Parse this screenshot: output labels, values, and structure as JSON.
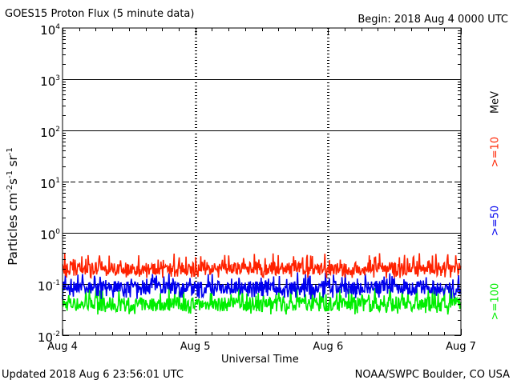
{
  "header": {
    "title": "GOES15 Proton Flux (5 minute data)",
    "begin": "Begin: 2018 Aug 4 0000 UTC"
  },
  "footer": {
    "updated": "Updated 2018 Aug  6 23:56:01 UTC",
    "credit": "NOAA/SWPC Boulder, CO USA"
  },
  "chart_data": {
    "type": "line",
    "title": "GOES15 Proton Flux (5 minute data)",
    "xlabel": "Universal Time",
    "ylabel": "Particles cm-2 s-1 sr-1",
    "yscale": "log",
    "ylim": [
      0.01,
      10000
    ],
    "xlim": [
      0,
      3
    ],
    "x_ticks": [
      {
        "value": 0,
        "label": "Aug 4"
      },
      {
        "value": 1,
        "label": "Aug 5"
      },
      {
        "value": 2,
        "label": "Aug 6"
      },
      {
        "value": 3,
        "label": "Aug 7"
      }
    ],
    "y_ticks": [
      {
        "value": 10000,
        "base": "10",
        "exp": "4"
      },
      {
        "value": 1000,
        "base": "10",
        "exp": "3"
      },
      {
        "value": 100,
        "base": "10",
        "exp": "2"
      },
      {
        "value": 10,
        "base": "10",
        "exp": "1"
      },
      {
        "value": 1,
        "base": "10",
        "exp": "0"
      },
      {
        "value": 0.1,
        "base": "10",
        "exp": "-1"
      },
      {
        "value": 0.01,
        "base": "10",
        "exp": "-2"
      }
    ],
    "grid": "horizontal at decades; dotted vertical at day boundaries",
    "threshold_lines": [
      {
        "value": 10,
        "style": "dashed"
      },
      {
        "value": 1000,
        "style": "solid"
      },
      {
        "value": 100,
        "style": "solid"
      },
      {
        "value": 1,
        "style": "solid"
      },
      {
        "value": 0.1,
        "style": "solid"
      }
    ],
    "legend_unit": "MeV",
    "series": [
      {
        "name": ">=10",
        "color": "#ff2200",
        "typical": 0.2,
        "min": 0.13,
        "max": 0.4
      },
      {
        "name": ">=50",
        "color": "#0000ee",
        "typical": 0.085,
        "min": 0.05,
        "max": 0.17
      },
      {
        "name": ">=100",
        "color": "#00ee00",
        "typical": 0.04,
        "min": 0.025,
        "max": 0.09
      }
    ]
  }
}
